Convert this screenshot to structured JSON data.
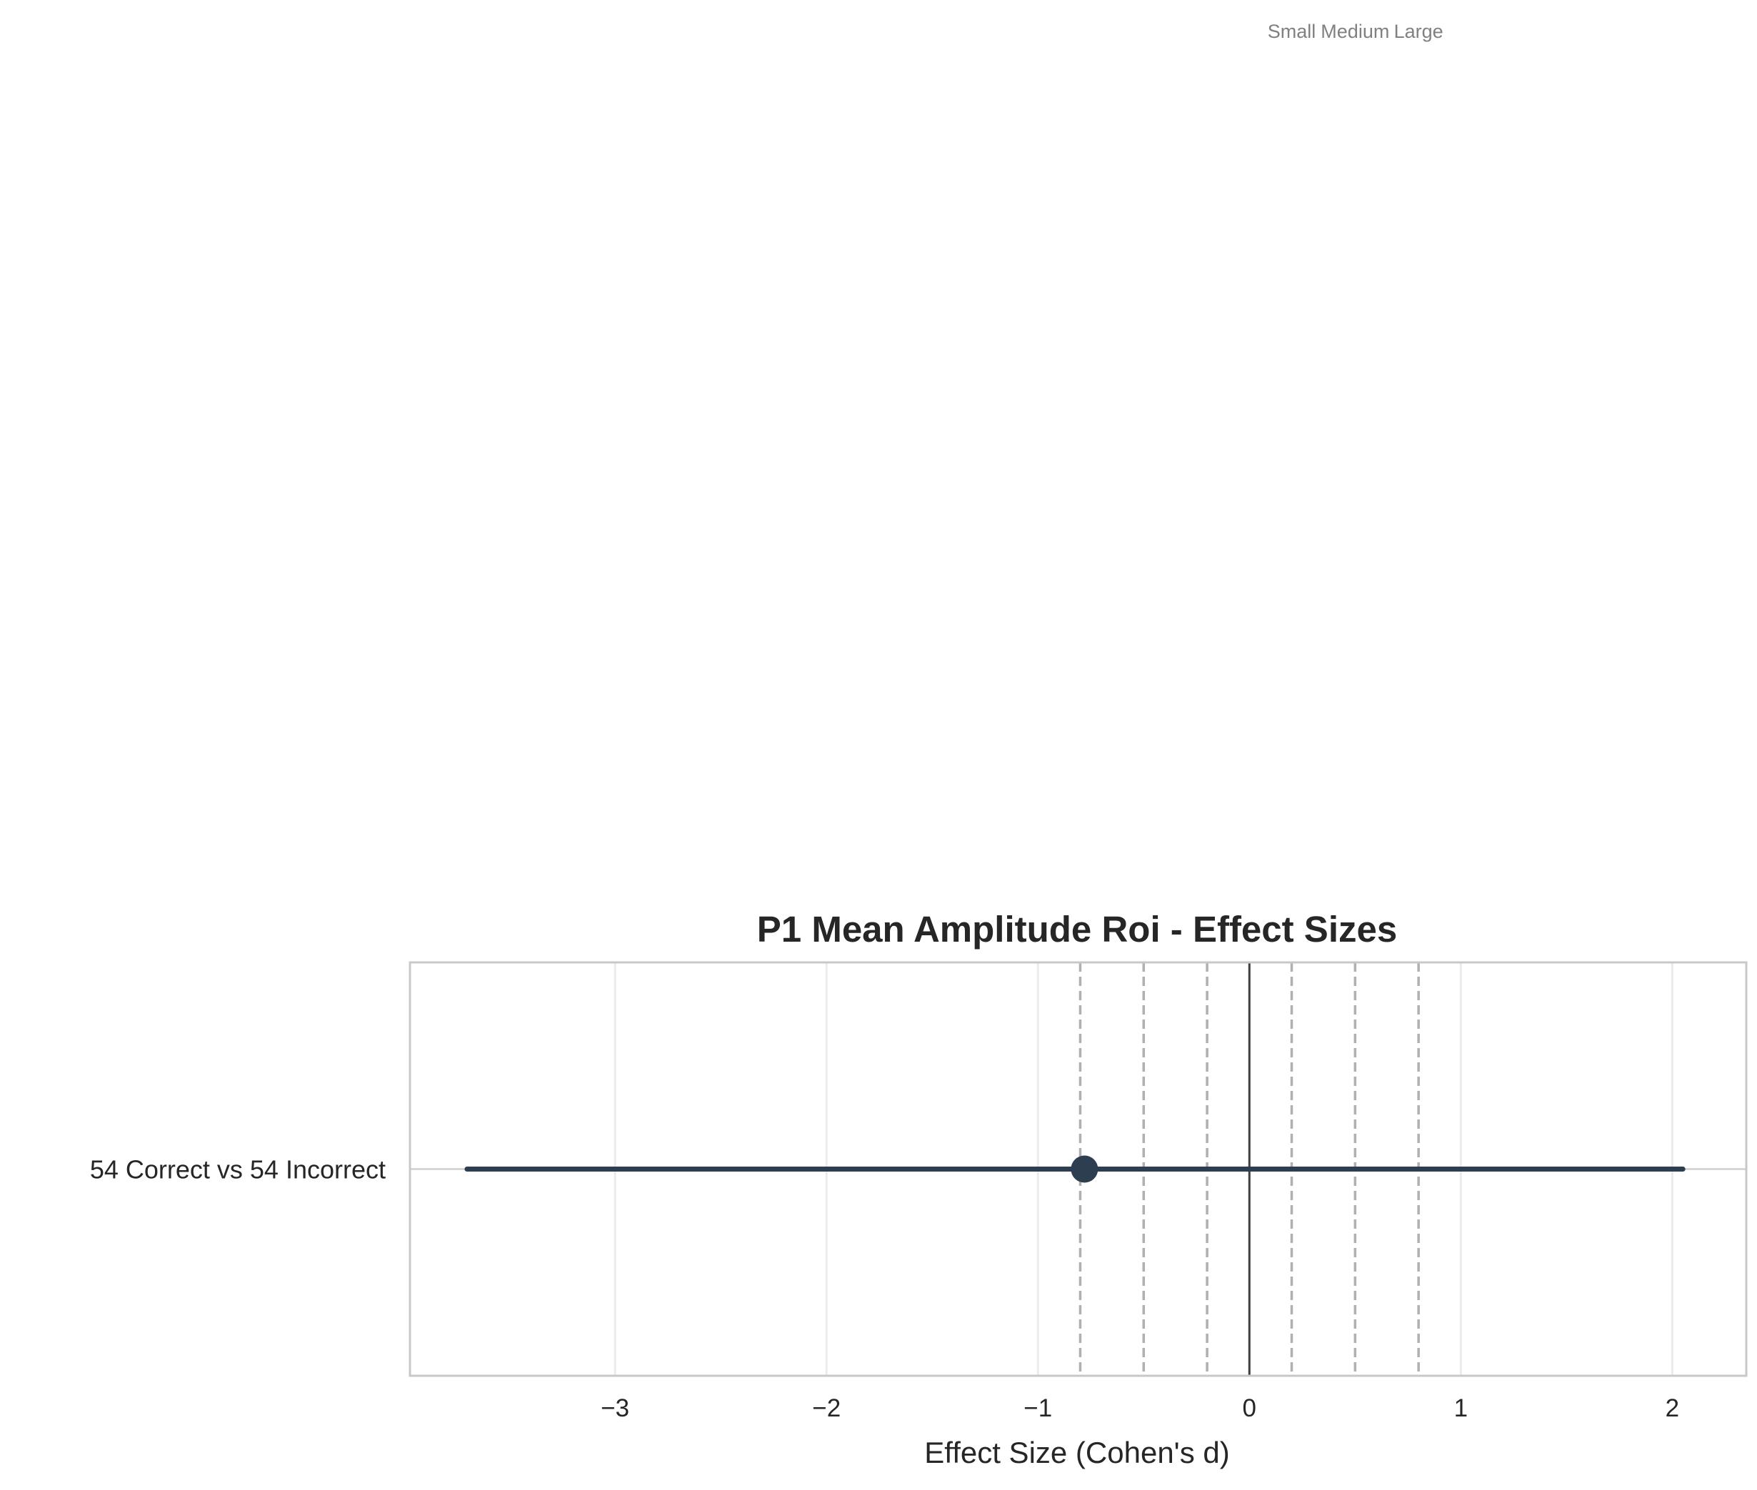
{
  "chart_data": {
    "type": "forest",
    "title": "P1 Mean Amplitude Roi - Effect Sizes",
    "xlabel": "Effect Size (Cohen's d)",
    "ylabel": "",
    "xlim": [
      -3.97,
      2.35
    ],
    "x_ticks": [
      -3,
      -2,
      -1,
      0,
      1,
      2
    ],
    "x_tick_labels": [
      "−3",
      "−2",
      "−1",
      "0",
      "1",
      "2"
    ],
    "grid": true,
    "categories": [
      "54 Correct vs 54 Incorrect"
    ],
    "points": [
      {
        "category": "54 Correct vs 54 Incorrect",
        "effect": -0.78,
        "ci_low": -3.7,
        "ci_high": 2.05
      }
    ],
    "reference_line": 0,
    "threshold_lines": [
      -0.8,
      -0.5,
      -0.2,
      0.2,
      0.5,
      0.8
    ],
    "threshold_labels": [
      {
        "text": "Small",
        "x": 0.2
      },
      {
        "text": "Medium",
        "x": 0.5
      },
      {
        "text": "Large",
        "x": 0.8
      }
    ],
    "colors": {
      "point": "#2c3e50",
      "threshold": "#b0b0b0",
      "reference": "#404040",
      "grid": "#ebebeb",
      "frame": "#c8c8c8",
      "annotation": "#808080"
    }
  }
}
